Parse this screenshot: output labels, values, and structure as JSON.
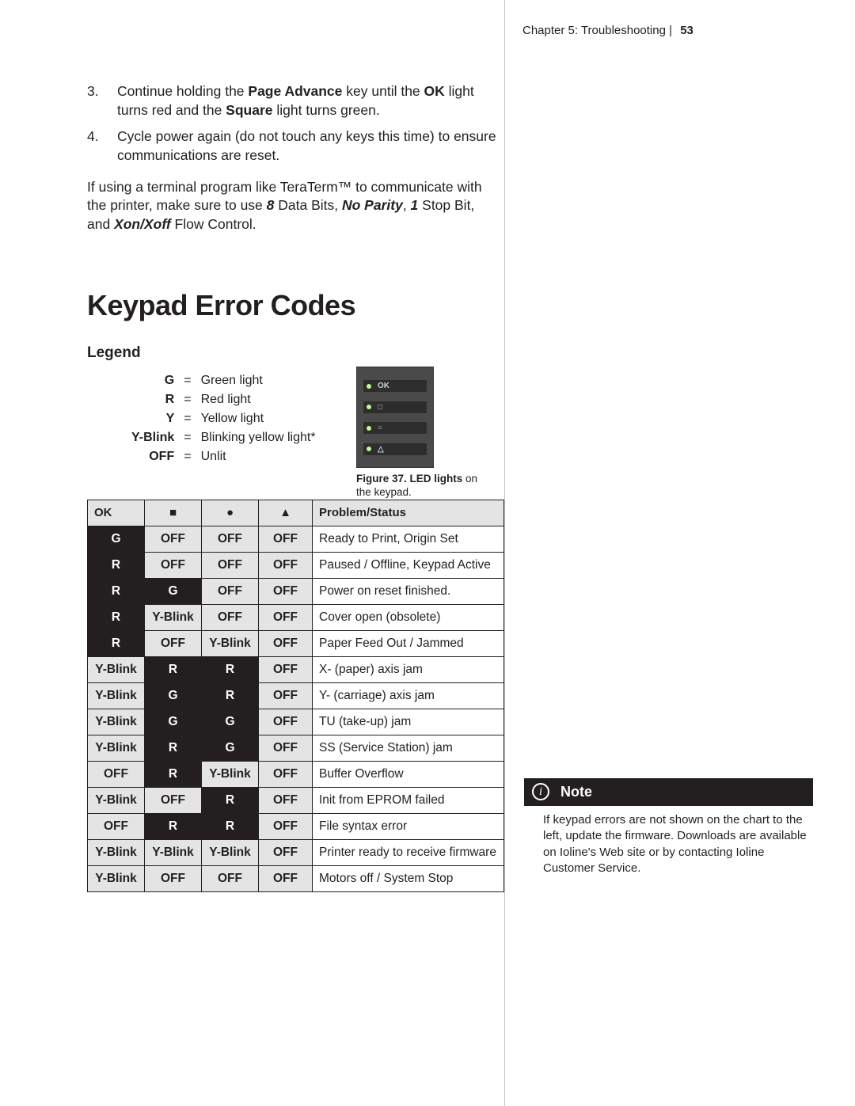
{
  "header": {
    "chapter": "Chapter 5: Troubleshooting",
    "page_number": "53"
  },
  "steps": [
    {
      "n": "3.",
      "text_parts": [
        {
          "t": "Continue holding the "
        },
        {
          "t": "Page Advance",
          "cls": "bold"
        },
        {
          "t": " key until the "
        },
        {
          "t": "OK",
          "cls": "bold"
        },
        {
          "t": " light turns red and the "
        },
        {
          "t": "Square",
          "cls": "bold"
        },
        {
          "t": " light turns green."
        }
      ]
    },
    {
      "n": "4.",
      "text_parts": [
        {
          "t": "Cycle power again (do not touch any keys this time) to ensure communications are reset."
        }
      ]
    }
  ],
  "body_paragraph_parts": [
    {
      "t": "If using a terminal program like TeraTerm™ to communicate with the printer, make sure to use "
    },
    {
      "t": "8",
      "cls": "bital"
    },
    {
      "t": " Data Bits, "
    },
    {
      "t": "No Parity",
      "cls": "bital"
    },
    {
      "t": ", "
    },
    {
      "t": "1",
      "cls": "bital"
    },
    {
      "t": " Stop Bit, and "
    },
    {
      "t": "Xon/Xoff",
      "cls": "bital"
    },
    {
      "t": " Flow Control."
    }
  ],
  "section_title": "Keypad Error Codes",
  "legend_title": "Legend",
  "legend_items": [
    {
      "key": "G",
      "desc": "Green light"
    },
    {
      "key": "R",
      "desc": "Red light"
    },
    {
      "key": "Y",
      "desc": "Yellow light"
    },
    {
      "key": "Y-Blink",
      "desc": "Blinking yellow light*"
    },
    {
      "key": "OFF",
      "desc": "Unlit"
    }
  ],
  "figure": {
    "caption_bold": "Figure 37. LED lights",
    "caption_rest": "on the keypad.",
    "rows": [
      "OK",
      "□",
      "○",
      "△"
    ]
  },
  "codes_table": {
    "columns": [
      "OK",
      "■",
      "●",
      "▲",
      "Problem/Status"
    ],
    "col_classes": [
      "",
      "center",
      "center",
      "center",
      ""
    ],
    "cell_kinds": {
      "b": "bcell",
      "i": "inv",
      "p": ""
    },
    "rows": [
      {
        "cells": [
          [
            "G",
            "i"
          ],
          [
            "OFF",
            "b"
          ],
          [
            "OFF",
            "b"
          ],
          [
            "OFF",
            "b"
          ],
          [
            "Ready to Print, Origin Set",
            "p"
          ]
        ]
      },
      {
        "cells": [
          [
            "R",
            "i"
          ],
          [
            "OFF",
            "b"
          ],
          [
            "OFF",
            "b"
          ],
          [
            "OFF",
            "b"
          ],
          [
            "Paused / Offline, Keypad Active",
            "p"
          ]
        ]
      },
      {
        "cells": [
          [
            "R",
            "i"
          ],
          [
            "G",
            "i"
          ],
          [
            "OFF",
            "b"
          ],
          [
            "OFF",
            "b"
          ],
          [
            "Power on reset finished.",
            "p"
          ]
        ]
      },
      {
        "cells": [
          [
            "R",
            "i"
          ],
          [
            "Y-Blink",
            "b"
          ],
          [
            "OFF",
            "b"
          ],
          [
            "OFF",
            "b"
          ],
          [
            "Cover open (obsolete)",
            "p"
          ]
        ]
      },
      {
        "cells": [
          [
            "R",
            "i"
          ],
          [
            "OFF",
            "b"
          ],
          [
            "Y-Blink",
            "b"
          ],
          [
            "OFF",
            "b"
          ],
          [
            "Paper Feed Out / Jammed",
            "p"
          ]
        ]
      },
      {
        "cells": [
          [
            "Y-Blink",
            "b"
          ],
          [
            "R",
            "i"
          ],
          [
            "R",
            "i"
          ],
          [
            "OFF",
            "b"
          ],
          [
            "X- (paper) axis jam",
            "p"
          ]
        ]
      },
      {
        "cells": [
          [
            "Y-Blink",
            "b"
          ],
          [
            "G",
            "i"
          ],
          [
            "R",
            "i"
          ],
          [
            "OFF",
            "b"
          ],
          [
            "Y- (carriage) axis jam",
            "p"
          ]
        ]
      },
      {
        "cells": [
          [
            "Y-Blink",
            "b"
          ],
          [
            "G",
            "i"
          ],
          [
            "G",
            "i"
          ],
          [
            "OFF",
            "b"
          ],
          [
            "TU (take-up) jam",
            "p"
          ]
        ]
      },
      {
        "cells": [
          [
            "Y-Blink",
            "b"
          ],
          [
            "R",
            "i"
          ],
          [
            "G",
            "i"
          ],
          [
            "OFF",
            "b"
          ],
          [
            "SS (Service Station) jam",
            "p"
          ]
        ]
      },
      {
        "cells": [
          [
            "OFF",
            "b"
          ],
          [
            "R",
            "i"
          ],
          [
            "Y-Blink",
            "b"
          ],
          [
            "OFF",
            "b"
          ],
          [
            "Buffer Overflow",
            "p"
          ]
        ]
      },
      {
        "cells": [
          [
            "Y-Blink",
            "b"
          ],
          [
            "OFF",
            "b"
          ],
          [
            "R",
            "i"
          ],
          [
            "OFF",
            "b"
          ],
          [
            "Init from EPROM failed",
            "p"
          ]
        ]
      },
      {
        "cells": [
          [
            "OFF",
            "b"
          ],
          [
            "R",
            "i"
          ],
          [
            "R",
            "i"
          ],
          [
            "OFF",
            "b"
          ],
          [
            "File syntax error",
            "p"
          ]
        ]
      },
      {
        "cells": [
          [
            "Y-Blink",
            "b"
          ],
          [
            "Y-Blink",
            "b"
          ],
          [
            "Y-Blink",
            "b"
          ],
          [
            "OFF",
            "b"
          ],
          [
            "Printer ready to receive firmware",
            "p"
          ]
        ]
      },
      {
        "cells": [
          [
            "Y-Blink",
            "b"
          ],
          [
            "OFF",
            "b"
          ],
          [
            "OFF",
            "b"
          ],
          [
            "OFF",
            "b"
          ],
          [
            "Motors off / System Stop",
            "p"
          ]
        ]
      }
    ]
  },
  "note": {
    "title": "Note",
    "body": "If keypad errors are not shown on the chart to the left, update the firmware. Downloads are available on Ioline's Web site or by contacting Ioline Customer Service."
  }
}
